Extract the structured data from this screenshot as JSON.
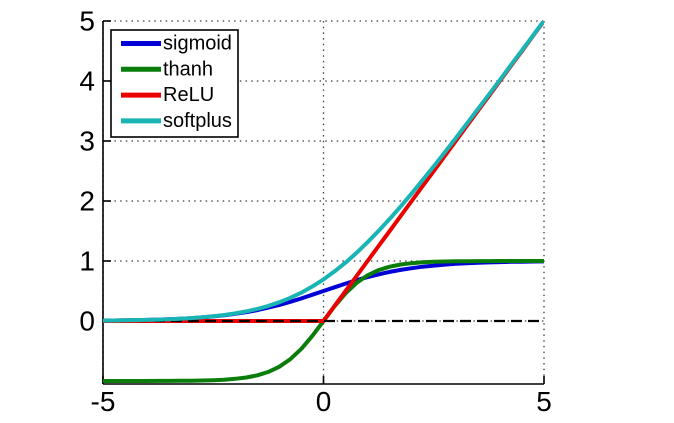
{
  "figure": {
    "background_color": "#ffffff",
    "axis_color": "#000000",
    "grid_color": "#3f3f3f"
  },
  "chart_data": {
    "type": "line",
    "xlim": [
      -5,
      5
    ],
    "ylim": [
      -1.05,
      5
    ],
    "grid": true,
    "xticks": [
      -5,
      0,
      5
    ],
    "xtick_labels": [
      "-5",
      "0",
      "5"
    ],
    "yticks": [
      0,
      1,
      2,
      3,
      4,
      5
    ],
    "ytick_labels": [
      "0",
      "1",
      "2",
      "3",
      "4",
      "5"
    ],
    "x": [
      -5,
      -4.75,
      -4.5,
      -4.25,
      -4,
      -3.75,
      -3.5,
      -3.25,
      -3,
      -2.75,
      -2.5,
      -2.25,
      -2,
      -1.75,
      -1.5,
      -1.25,
      -1,
      -0.75,
      -0.5,
      -0.25,
      0,
      0.25,
      0.5,
      0.75,
      1,
      1.25,
      1.5,
      1.75,
      2,
      2.25,
      2.5,
      2.75,
      3,
      3.25,
      3.5,
      3.75,
      4,
      4.25,
      4.5,
      4.75,
      5
    ],
    "series": [
      {
        "name": "sigmoid",
        "color": "#0000d7",
        "width": 4,
        "values": [
          0.0067,
          0.0086,
          0.011,
          0.0141,
          0.018,
          0.023,
          0.0293,
          0.0373,
          0.0474,
          0.0601,
          0.0759,
          0.0953,
          0.1192,
          0.148,
          0.1824,
          0.2227,
          0.2689,
          0.3208,
          0.3775,
          0.4378,
          0.5,
          0.5622,
          0.6225,
          0.6792,
          0.7311,
          0.7773,
          0.8176,
          0.852,
          0.8808,
          0.9047,
          0.9241,
          0.9399,
          0.9526,
          0.9627,
          0.9707,
          0.977,
          0.982,
          0.9859,
          0.989,
          0.9914,
          0.9933
        ]
      },
      {
        "name": "thanh",
        "color": "#0a7d0a",
        "width": 4,
        "values": [
          -0.9999,
          -0.9999,
          -0.9998,
          -0.9996,
          -0.9993,
          -0.9989,
          -0.9982,
          -0.9967,
          -0.9951,
          -0.9919,
          -0.9866,
          -0.978,
          -0.964,
          -0.9414,
          -0.9051,
          -0.8483,
          -0.7616,
          -0.6351,
          -0.4621,
          -0.2449,
          0,
          0.2449,
          0.4621,
          0.6351,
          0.7616,
          0.8483,
          0.9051,
          0.9414,
          0.964,
          0.978,
          0.9866,
          0.9919,
          0.9951,
          0.9967,
          0.9982,
          0.9989,
          0.9993,
          0.9996,
          0.9998,
          0.9999,
          0.9999
        ]
      },
      {
        "name": "ReLU",
        "color": "#eb0000",
        "width": 4,
        "values": [
          0,
          0,
          0,
          0,
          0,
          0,
          0,
          0,
          0,
          0,
          0,
          0,
          0,
          0,
          0,
          0,
          0,
          0,
          0,
          0,
          0,
          0.25,
          0.5,
          0.75,
          1,
          1.25,
          1.5,
          1.75,
          2,
          2.25,
          2.5,
          2.75,
          3,
          3.25,
          3.5,
          3.75,
          4,
          4.25,
          4.5,
          4.75,
          5
        ]
      },
      {
        "name": "zero-reference-line",
        "color": "#000000",
        "width": 2.2,
        "dash": "11 6",
        "in_legend": false,
        "x": [
          -5,
          5
        ],
        "values": [
          0,
          0
        ]
      },
      {
        "name": "softplus",
        "color": "#19b4b4",
        "width": 4,
        "values": [
          0.0067,
          0.0086,
          0.0111,
          0.0142,
          0.0181,
          0.0233,
          0.0298,
          0.038,
          0.0486,
          0.0619,
          0.0789,
          0.1002,
          0.1269,
          0.1602,
          0.2014,
          0.2519,
          0.3133,
          0.3868,
          0.4741,
          0.5759,
          0.6931,
          0.8259,
          0.9741,
          1.1368,
          1.3133,
          1.5019,
          1.7014,
          1.9102,
          2.1269,
          2.3502,
          2.5789,
          2.8119,
          3.0486,
          3.288,
          3.5298,
          3.7733,
          4.0181,
          4.2642,
          4.5111,
          4.7586,
          5.0067
        ]
      }
    ],
    "legend": {
      "position": "top-left",
      "entries": [
        {
          "label": "sigmoid",
          "color": "#0000d7"
        },
        {
          "label": "thanh",
          "color": "#0a7d0a"
        },
        {
          "label": "ReLU",
          "color": "#eb0000"
        },
        {
          "label": "softplus",
          "color": "#19b4b4"
        }
      ]
    }
  }
}
